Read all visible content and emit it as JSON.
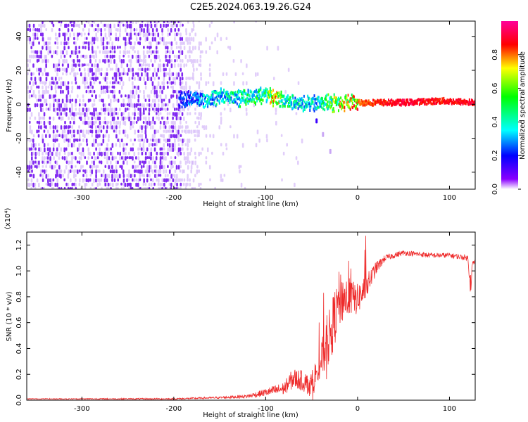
{
  "title": "C2E5.2024.063.19.26.G24",
  "colors": {
    "snr_line": "#ee2a2a",
    "spec_dot": "#7a1ff0",
    "spec_dot_faint": "#c9a6f5"
  },
  "chart_data": [
    {
      "type": "heatmap",
      "name": "spectrogram",
      "xlabel": "Height of straight line (km)",
      "ylabel": "Frequency (Hz)",
      "xlim": [
        -360,
        128
      ],
      "ylim": [
        -50,
        49
      ],
      "xticks": [
        -300,
        -200,
        -100,
        0,
        100
      ],
      "yticks": [
        -40,
        -20,
        0,
        20,
        40
      ],
      "colorbar": {
        "label": "Normalized spectral amplitude",
        "range": [
          0,
          1
        ],
        "ticks": [
          "0.0",
          "0.2",
          "0.4",
          "0.6",
          "0.8"
        ],
        "tick_values": [
          0.0,
          0.2,
          0.4,
          0.6,
          0.8
        ],
        "colormap": [
          "#ffffff",
          "#8a00ff",
          "#0000ff",
          "#00ffff",
          "#00ff00",
          "#ffff00",
          "#ff0000",
          "#ff0099"
        ]
      },
      "noise_region_x": [
        -360,
        -120
      ],
      "signal_track": [
        {
          "x": -195,
          "freq": 3,
          "amp": 0.3
        },
        {
          "x": -170,
          "freq": 3,
          "amp": 0.45
        },
        {
          "x": -150,
          "freq": 4,
          "amp": 0.5
        },
        {
          "x": -120,
          "freq": 4,
          "amp": 0.55
        },
        {
          "x": -100,
          "freq": 6,
          "amp": 0.6
        },
        {
          "x": -90,
          "freq": 3,
          "amp": 0.85
        },
        {
          "x": -80,
          "freq": 2,
          "amp": 0.55
        },
        {
          "x": -60,
          "freq": 0,
          "amp": 0.5
        },
        {
          "x": -40,
          "freq": 1,
          "amp": 0.5
        },
        {
          "x": -20,
          "freq": 1,
          "amp": 0.75
        },
        {
          "x": 0,
          "freq": 1,
          "amp": 0.85
        },
        {
          "x": 50,
          "freq": 1,
          "amp": 0.95
        },
        {
          "x": 90,
          "freq": 2,
          "amp": 0.9
        },
        {
          "x": 128,
          "freq": 1,
          "amp": 0.95
        }
      ],
      "tail_track": [
        {
          "x": -45,
          "freq": -10
        },
        {
          "x": -38,
          "freq": -18
        },
        {
          "x": -30,
          "freq": -28
        }
      ]
    },
    {
      "type": "line",
      "name": "snr",
      "xlabel": "Height of straight line (km)",
      "ylabel": "SNR (10 * v/v)",
      "multiplier_label": "(x10⁴)",
      "xlim": [
        -360,
        128
      ],
      "ylim": [
        0,
        1.3
      ],
      "xticks": [
        -300,
        -200,
        -100,
        0,
        100
      ],
      "yticks": [
        0.0,
        0.2,
        0.4,
        0.6,
        0.8,
        1.0,
        1.2
      ],
      "ytick_labels": [
        "0.0",
        "0.2",
        "0.4",
        "0.6",
        "0.8",
        "1.0",
        "1.2"
      ],
      "series": [
        {
          "x": [
            -360,
            -300,
            -200,
            -150,
            -120,
            -100,
            -80,
            -70,
            -60,
            -50,
            -40,
            -30,
            -20,
            -10,
            0,
            10,
            20,
            30,
            50,
            80,
            100,
            120,
            123,
            125,
            128
          ],
          "y": [
            0.01,
            0.01,
            0.01,
            0.02,
            0.03,
            0.06,
            0.09,
            0.17,
            0.15,
            0.12,
            0.3,
            0.5,
            0.78,
            0.8,
            0.78,
            0.88,
            1.02,
            1.1,
            1.14,
            1.12,
            1.12,
            1.1,
            0.9,
            1.05,
            1.07
          ],
          "noise": [
            0.003,
            0.004,
            0.006,
            0.008,
            0.015,
            0.03,
            0.05,
            0.08,
            0.08,
            0.1,
            0.14,
            0.22,
            0.22,
            0.15,
            0.12,
            0.1,
            0.05,
            0.025,
            0.02,
            0.02,
            0.02,
            0.02,
            0.1,
            0.03,
            0.02
          ]
        }
      ]
    }
  ]
}
